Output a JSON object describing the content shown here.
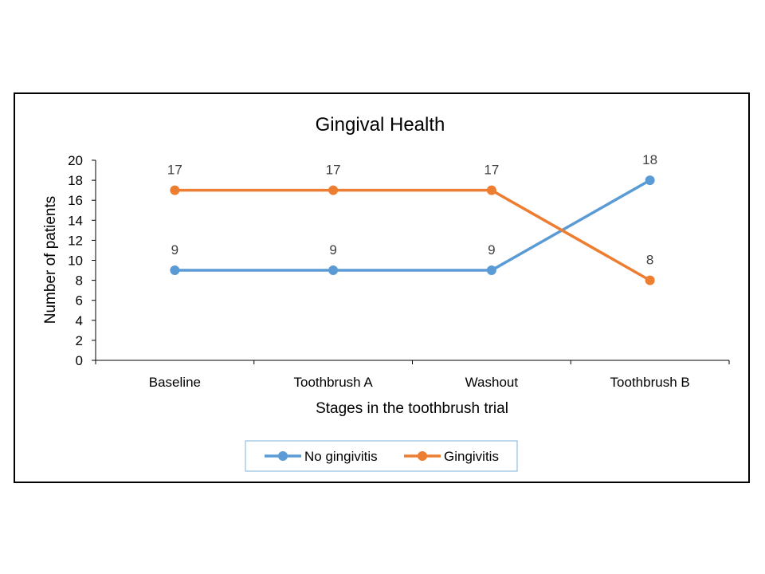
{
  "chart_data": {
    "type": "line",
    "title": "Gingival Health",
    "xlabel": "Stages in the toothbrush trial",
    "ylabel": "Number of patients",
    "categories": [
      "Baseline",
      "Toothbrush A",
      "Washout",
      "Toothbrush B"
    ],
    "ylim": [
      0,
      20
    ],
    "yticks": [
      0,
      2,
      4,
      6,
      8,
      10,
      12,
      14,
      16,
      18,
      20
    ],
    "grid": false,
    "legend_position": "bottom",
    "data_labels": true,
    "series": [
      {
        "name": "No gingivitis",
        "values": [
          9,
          9,
          9,
          18
        ],
        "color": "#5B9BD5"
      },
      {
        "name": "Gingivitis",
        "values": [
          17,
          17,
          17,
          8
        ],
        "color": "#ED7D31"
      }
    ]
  },
  "colors": {
    "frame": "#000000",
    "axis": "#000000",
    "text": "#000000",
    "data_label": "#404040",
    "legend_border": "#7EB0DA"
  }
}
